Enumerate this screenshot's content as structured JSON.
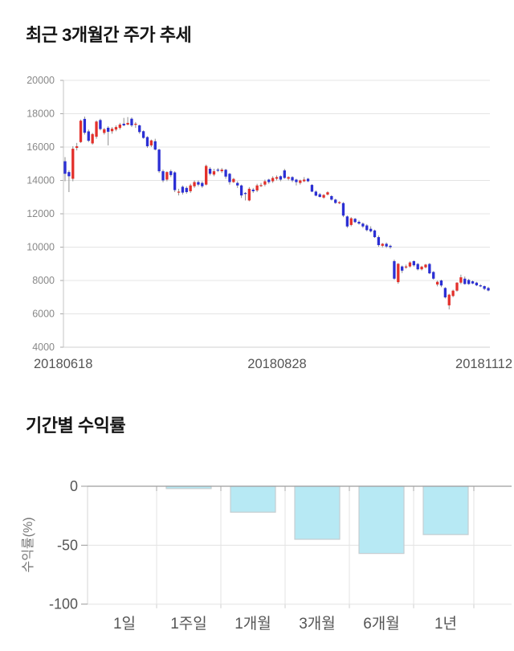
{
  "page_bg": "#ffffff",
  "sections": {
    "price_trend": {
      "title": "최근 3개월간 주가 추세"
    },
    "period_returns": {
      "title": "기간별 수익률"
    }
  },
  "chart_data": [
    {
      "type": "candlestick",
      "title": "최근 3개월간 주가 추세",
      "ylim": [
        4000,
        20000
      ],
      "y_ticks": [
        20000,
        18000,
        16000,
        14000,
        12000,
        10000,
        8000,
        6000,
        4000
      ],
      "x_tick_labels": [
        "20180618",
        "20180828",
        "20181112"
      ],
      "grid": true,
      "up_color": "#e3302b",
      "down_color": "#2b2fd4",
      "wick_color": "#8f8f8f",
      "grid_color": "#e4e4e4",
      "axis_color": "#c4c4c4",
      "tick_label_color": "#888888",
      "x_label_color": "#555555",
      "candles_ohlc": [
        [
          15150,
          15400,
          13950,
          14400
        ],
        [
          14500,
          14600,
          13300,
          14250
        ],
        [
          14100,
          16050,
          13950,
          15900
        ],
        [
          15950,
          16250,
          15800,
          16050
        ],
        [
          16300,
          17650,
          16250,
          17580
        ],
        [
          17690,
          17830,
          16750,
          16860
        ],
        [
          16940,
          17050,
          16300,
          16380
        ],
        [
          16220,
          16850,
          16150,
          16780
        ],
        [
          16620,
          17600,
          16500,
          17530
        ],
        [
          17620,
          17700,
          17000,
          17080
        ],
        [
          16850,
          17150,
          16750,
          17070
        ],
        [
          17160,
          17250,
          16100,
          16920
        ],
        [
          16950,
          17200,
          16800,
          17100
        ],
        [
          17050,
          17300,
          16950,
          17200
        ],
        [
          17150,
          17450,
          17050,
          17350
        ],
        [
          17400,
          17750,
          17250,
          17300
        ],
        [
          17350,
          17800,
          17300,
          17450
        ],
        [
          17700,
          17780,
          17200,
          17300
        ],
        [
          17350,
          17500,
          17150,
          17400
        ],
        [
          17300,
          17350,
          16800,
          16900
        ],
        [
          16950,
          17000,
          16500,
          16550
        ],
        [
          16600,
          16650,
          15950,
          16050
        ],
        [
          16100,
          16450,
          16000,
          16400
        ],
        [
          16350,
          16500,
          15800,
          15850
        ],
        [
          15850,
          15900,
          14450,
          14550
        ],
        [
          14550,
          14650,
          13890,
          14000
        ],
        [
          14050,
          14550,
          13950,
          14500
        ],
        [
          14550,
          14650,
          14200,
          14320
        ],
        [
          14480,
          14550,
          13300,
          13420
        ],
        [
          13300,
          13500,
          13100,
          13330
        ],
        [
          13620,
          13700,
          13150,
          13270
        ],
        [
          13550,
          13650,
          13200,
          13300
        ],
        [
          13350,
          13800,
          13250,
          13700
        ],
        [
          13650,
          14000,
          13550,
          13900
        ],
        [
          13900,
          14000,
          13650,
          13750
        ],
        [
          13850,
          13950,
          13550,
          13650
        ],
        [
          13750,
          14950,
          13700,
          14870
        ],
        [
          14700,
          14800,
          14300,
          14400
        ],
        [
          14350,
          14700,
          14250,
          14550
        ],
        [
          14650,
          14750,
          14500,
          14600
        ],
        [
          14550,
          14750,
          14450,
          14650
        ],
        [
          14640,
          14700,
          14100,
          14230
        ],
        [
          14400,
          14450,
          13750,
          13900
        ],
        [
          13900,
          14150,
          13850,
          14090
        ],
        [
          13850,
          13950,
          13550,
          13700
        ],
        [
          13700,
          13750,
          12950,
          13100
        ],
        [
          13250,
          13300,
          12800,
          13230
        ],
        [
          12800,
          13600,
          12750,
          13500
        ],
        [
          13450,
          13550,
          13250,
          13350
        ],
        [
          13400,
          13800,
          13300,
          13700
        ],
        [
          13700,
          13850,
          13600,
          13720
        ],
        [
          13750,
          14050,
          13650,
          13950
        ],
        [
          14050,
          14100,
          13800,
          13900
        ],
        [
          13950,
          14250,
          13850,
          14150
        ],
        [
          14100,
          14300,
          14000,
          14200
        ],
        [
          14250,
          14300,
          13950,
          14050
        ],
        [
          14600,
          14700,
          14100,
          14150
        ],
        [
          14100,
          14250,
          14000,
          14200
        ],
        [
          14200,
          14250,
          13900,
          14000
        ],
        [
          14050,
          14100,
          13700,
          13900
        ],
        [
          13850,
          14050,
          13750,
          14000
        ],
        [
          13950,
          14200,
          13900,
          14050
        ],
        [
          14100,
          14150,
          13900,
          13950
        ],
        [
          13730,
          13780,
          13300,
          13330
        ],
        [
          13330,
          13400,
          13050,
          13090
        ],
        [
          13170,
          13250,
          12980,
          13010
        ],
        [
          12970,
          13180,
          12900,
          13130
        ],
        [
          13150,
          13350,
          13100,
          13290
        ],
        [
          13060,
          13120,
          12800,
          12850
        ],
        [
          12850,
          12900,
          12600,
          12650
        ],
        [
          12700,
          12750,
          12580,
          12700
        ],
        [
          12640,
          12700,
          11800,
          11890
        ],
        [
          11840,
          11900,
          11150,
          11240
        ],
        [
          11330,
          11800,
          11250,
          11730
        ],
        [
          11700,
          11750,
          11450,
          11500
        ],
        [
          11520,
          11600,
          11350,
          11410
        ],
        [
          11410,
          11480,
          11150,
          11240
        ],
        [
          11300,
          11380,
          10950,
          11020
        ],
        [
          11100,
          11250,
          10880,
          10950
        ],
        [
          11000,
          11050,
          10550,
          10600
        ],
        [
          10600,
          10700,
          10020,
          10120
        ],
        [
          10080,
          10250,
          9980,
          10200
        ],
        [
          10200,
          10280,
          9950,
          10040
        ],
        [
          10080,
          10150,
          9900,
          10000
        ],
        [
          9160,
          9250,
          8050,
          8110
        ],
        [
          7900,
          9050,
          7800,
          9000
        ],
        [
          8840,
          8900,
          8450,
          8590
        ],
        [
          8800,
          8950,
          8700,
          8840
        ],
        [
          8840,
          9150,
          8780,
          9080
        ],
        [
          9160,
          9200,
          8830,
          8910
        ],
        [
          8990,
          9050,
          8600,
          8670
        ],
        [
          8670,
          8880,
          8600,
          8830
        ],
        [
          8790,
          9000,
          8730,
          8950
        ],
        [
          8990,
          9050,
          8380,
          8430
        ],
        [
          8510,
          8560,
          8050,
          8110
        ],
        [
          7760,
          7990,
          7650,
          7920
        ],
        [
          8000,
          8050,
          7600,
          7700
        ],
        [
          7550,
          7600,
          6920,
          6990
        ],
        [
          6510,
          7200,
          6270,
          7150
        ],
        [
          7070,
          7450,
          7000,
          7390
        ],
        [
          7390,
          7900,
          7330,
          7870
        ],
        [
          7870,
          8350,
          7780,
          8190
        ],
        [
          8110,
          8240,
          7750,
          7790
        ],
        [
          8030,
          8100,
          7740,
          7790
        ],
        [
          7950,
          8000,
          7780,
          7820
        ],
        [
          7870,
          7920,
          7660,
          7710
        ],
        [
          7710,
          7780,
          7600,
          7700
        ],
        [
          7660,
          7700,
          7420,
          7500
        ],
        [
          7550,
          7620,
          7350,
          7400
        ]
      ]
    },
    {
      "type": "bar",
      "title": "기간별 수익률",
      "categories": [
        "1일",
        "1주일",
        "1개월",
        "3개월",
        "6개월",
        "1년"
      ],
      "values": [
        0,
        -2,
        -22,
        -45,
        -57,
        -41
      ],
      "xlabel": "",
      "ylabel": "수익률(%)",
      "y_ticks": [
        0,
        -50,
        -100
      ],
      "ylim": [
        -100,
        0
      ],
      "grid": true,
      "legend": false,
      "bar_color": "#b7e9f4",
      "bar_border_color": "#c5ced1",
      "grid_color": "#e3e3e3",
      "zero_line_color": "#9e9e9e",
      "axis_color": "#d5d5d5",
      "tick_label_color": "#555555",
      "ylabel_color": "#777777"
    }
  ]
}
